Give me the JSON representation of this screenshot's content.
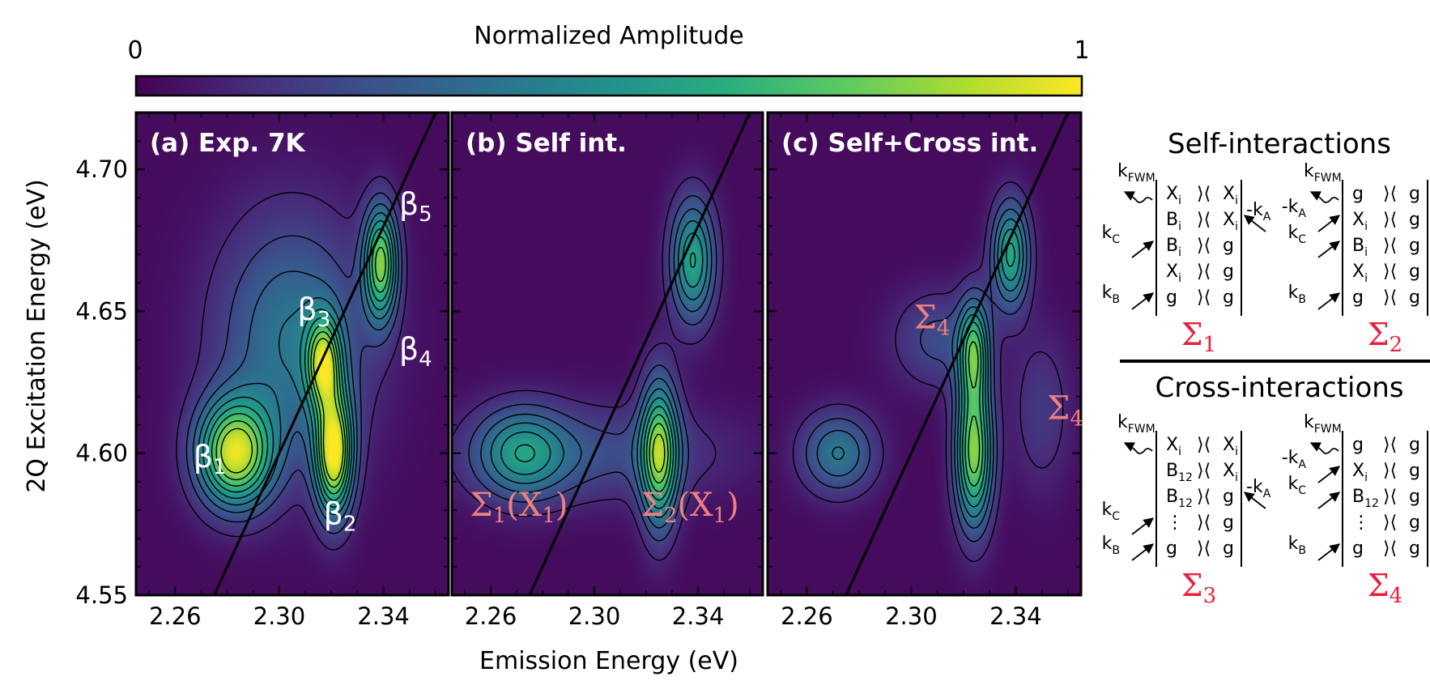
{
  "colorbar": {
    "title": "Normalized Amplitude",
    "min_label": "0",
    "max_label": "1",
    "colormap": [
      "#440154",
      "#472d7b",
      "#3b528b",
      "#2c728e",
      "#21918c",
      "#28ae80",
      "#5ec962",
      "#addc30",
      "#fde725"
    ]
  },
  "chart_data": [
    {
      "type": "heatmap",
      "panel": "a",
      "title": "(a) Exp. 7K",
      "xlabel": "Emission Energy (eV)",
      "ylabel": "2Q Excitation Energy (eV)",
      "xlim": [
        2.245,
        2.365
      ],
      "ylim": [
        4.55,
        4.72
      ],
      "xticks": [
        "2.26",
        "2.30",
        "2.34"
      ],
      "xtick_values": [
        2.26,
        2.3,
        2.34
      ],
      "yticks": [
        "4.55",
        "4.60",
        "4.65",
        "4.70"
      ],
      "ytick_values": [
        4.55,
        4.6,
        4.65,
        4.7
      ],
      "diagonal": "y = 2x",
      "peaks": [
        {
          "x": 2.283,
          "y": 4.6,
          "amp": 0.95,
          "sx": 0.01,
          "sy": 0.013
        },
        {
          "x": 2.321,
          "y": 4.6,
          "amp": 1.0,
          "sx": 0.005,
          "sy": 0.015
        },
        {
          "x": 2.317,
          "y": 4.632,
          "amp": 0.72,
          "sx": 0.0045,
          "sy": 0.011
        },
        {
          "x": 2.339,
          "y": 4.667,
          "amp": 0.8,
          "sx": 0.0045,
          "sy": 0.014
        },
        {
          "x": 2.305,
          "y": 4.64,
          "amp": 0.4,
          "sx": 0.02,
          "sy": 0.03
        }
      ],
      "annotations": [
        {
          "text": "β",
          "sub": "1",
          "x": 2.267,
          "y": 4.595
        },
        {
          "text": "β",
          "sub": "2",
          "x": 2.317,
          "y": 4.575
        },
        {
          "text": "β",
          "sub": "3",
          "x": 2.307,
          "y": 4.647
        },
        {
          "text": "β",
          "sub": "4",
          "x": 2.346,
          "y": 4.633
        },
        {
          "text": "β",
          "sub": "5",
          "x": 2.346,
          "y": 4.684
        }
      ]
    },
    {
      "type": "heatmap",
      "panel": "b",
      "title": "(b) Self int.",
      "xlim": [
        2.245,
        2.365
      ],
      "ylim": [
        4.55,
        4.72
      ],
      "xticks": [
        "2.26",
        "2.30",
        "2.34"
      ],
      "xtick_values": [
        2.26,
        2.3,
        2.34
      ],
      "diagonal": "y = 2x",
      "peaks": [
        {
          "x": 2.272,
          "y": 4.6,
          "amp": 0.45,
          "sx": 0.012,
          "sy": 0.011
        },
        {
          "x": 2.325,
          "y": 4.6,
          "amp": 0.8,
          "sx": 0.005,
          "sy": 0.018
        },
        {
          "x": 2.338,
          "y": 4.668,
          "amp": 0.6,
          "sx": 0.006,
          "sy": 0.015
        },
        {
          "x": 2.3,
          "y": 4.6,
          "amp": 0.22,
          "sx": 0.035,
          "sy": 0.012
        }
      ],
      "annotations": [
        {
          "text": "Σ",
          "sub": "1",
          "suffix": "(X",
          "suffix_sub": "1",
          "close": ")",
          "x": 2.252,
          "y": 4.578
        },
        {
          "text": "Σ",
          "sub": "2",
          "suffix": "(X",
          "suffix_sub": "1",
          "close": ")",
          "x": 2.318,
          "y": 4.578
        }
      ]
    },
    {
      "type": "heatmap",
      "panel": "c",
      "title": "(c) Self+Cross int.",
      "xlim": [
        2.245,
        2.365
      ],
      "ylim": [
        4.55,
        4.72
      ],
      "xticks": [
        "2.26",
        "2.30",
        "2.34"
      ],
      "xtick_values": [
        2.26,
        2.3,
        2.34
      ],
      "diagonal": "y = 2x",
      "peaks": [
        {
          "x": 2.272,
          "y": 4.6,
          "amp": 0.4,
          "sx": 0.01,
          "sy": 0.01
        },
        {
          "x": 2.324,
          "y": 4.6,
          "amp": 0.85,
          "sx": 0.005,
          "sy": 0.018
        },
        {
          "x": 2.324,
          "y": 4.636,
          "amp": 0.62,
          "sx": 0.004,
          "sy": 0.013
        },
        {
          "x": 2.338,
          "y": 4.67,
          "amp": 0.62,
          "sx": 0.005,
          "sy": 0.013
        },
        {
          "x": 2.31,
          "y": 4.64,
          "amp": 0.22,
          "sx": 0.012,
          "sy": 0.012
        },
        {
          "x": 2.35,
          "y": 4.615,
          "amp": 0.15,
          "sx": 0.008,
          "sy": 0.02
        }
      ],
      "annotations": [
        {
          "text": "Σ",
          "sub": "4",
          "x": 2.301,
          "y": 4.644
        },
        {
          "text": "Σ",
          "sub": "4",
          "x": 2.352,
          "y": 4.612
        }
      ]
    }
  ],
  "diagrams": {
    "self_title": "Self-interactions",
    "cross_title": "Cross-interactions",
    "items": [
      {
        "label": "Σ",
        "label_sub": "1",
        "top": "k",
        "top_sub": "FWM",
        "rows": [
          {
            "l": "X",
            "ls": "i",
            "r": "X",
            "rs": "i"
          },
          {
            "l": "B",
            "ls": "i",
            "r": "X",
            "rs": "i"
          },
          {
            "l": "B",
            "ls": "i",
            "r": "g",
            "rs": ""
          },
          {
            "l": "X",
            "ls": "i",
            "r": "g",
            "rs": ""
          },
          {
            "l": "g",
            "ls": "",
            "r": "g",
            "rs": ""
          }
        ],
        "arrows": [
          {
            "side": "left",
            "row": 2,
            "text": "k",
            "sub": "C"
          },
          {
            "side": "left",
            "row": 4,
            "text": "k",
            "sub": "B"
          },
          {
            "side": "right",
            "row": 1,
            "text": "-k",
            "sub": "A"
          }
        ]
      },
      {
        "label": "Σ",
        "label_sub": "2",
        "top": "k",
        "top_sub": "FWM",
        "rows": [
          {
            "l": "g",
            "ls": "",
            "r": "g",
            "rs": ""
          },
          {
            "l": "X",
            "ls": "i",
            "r": "g",
            "rs": ""
          },
          {
            "l": "B",
            "ls": "i",
            "r": "g",
            "rs": ""
          },
          {
            "l": "X",
            "ls": "i",
            "r": "g",
            "rs": ""
          },
          {
            "l": "g",
            "ls": "",
            "r": "g",
            "rs": ""
          }
        ],
        "arrows": [
          {
            "side": "left",
            "row": 1,
            "text": "-k",
            "sub": "A"
          },
          {
            "side": "left",
            "row": 2,
            "text": "k",
            "sub": "C"
          },
          {
            "side": "left",
            "row": 4,
            "text": "k",
            "sub": "B"
          }
        ]
      },
      {
        "label": "Σ",
        "label_sub": "3",
        "top": "k",
        "top_sub": "FWM",
        "rows": [
          {
            "l": "X",
            "ls": "i",
            "r": "X",
            "rs": "i"
          },
          {
            "l": "B",
            "ls": "12",
            "r": "X",
            "rs": "i"
          },
          {
            "l": "B",
            "ls": "12",
            "r": "g",
            "rs": ""
          },
          {
            "l": "⋮",
            "ls": "",
            "r": "g",
            "rs": ""
          },
          {
            "l": "g",
            "ls": "",
            "r": "g",
            "rs": ""
          }
        ],
        "arrows": [
          {
            "side": "left",
            "row": 3,
            "text": "k",
            "sub": "C"
          },
          {
            "side": "left",
            "row": 4,
            "text": "k",
            "sub": "B"
          },
          {
            "side": "right",
            "row": 2,
            "text": "-k",
            "sub": "A"
          }
        ]
      },
      {
        "label": "Σ",
        "label_sub": "4",
        "top": "k",
        "top_sub": "FWM",
        "rows": [
          {
            "l": "g",
            "ls": "",
            "r": "g",
            "rs": ""
          },
          {
            "l": "X",
            "ls": "i",
            "r": "g",
            "rs": ""
          },
          {
            "l": "B",
            "ls": "12",
            "r": "g",
            "rs": ""
          },
          {
            "l": "⋮",
            "ls": "",
            "r": "g",
            "rs": ""
          },
          {
            "l": "g",
            "ls": "",
            "r": "g",
            "rs": ""
          }
        ],
        "arrows": [
          {
            "side": "left",
            "row": 1,
            "text": "-k",
            "sub": "A"
          },
          {
            "side": "left",
            "row": 2,
            "text": "k",
            "sub": "C"
          },
          {
            "side": "left",
            "row": 4,
            "text": "k",
            "sub": "B"
          }
        ]
      }
    ]
  }
}
